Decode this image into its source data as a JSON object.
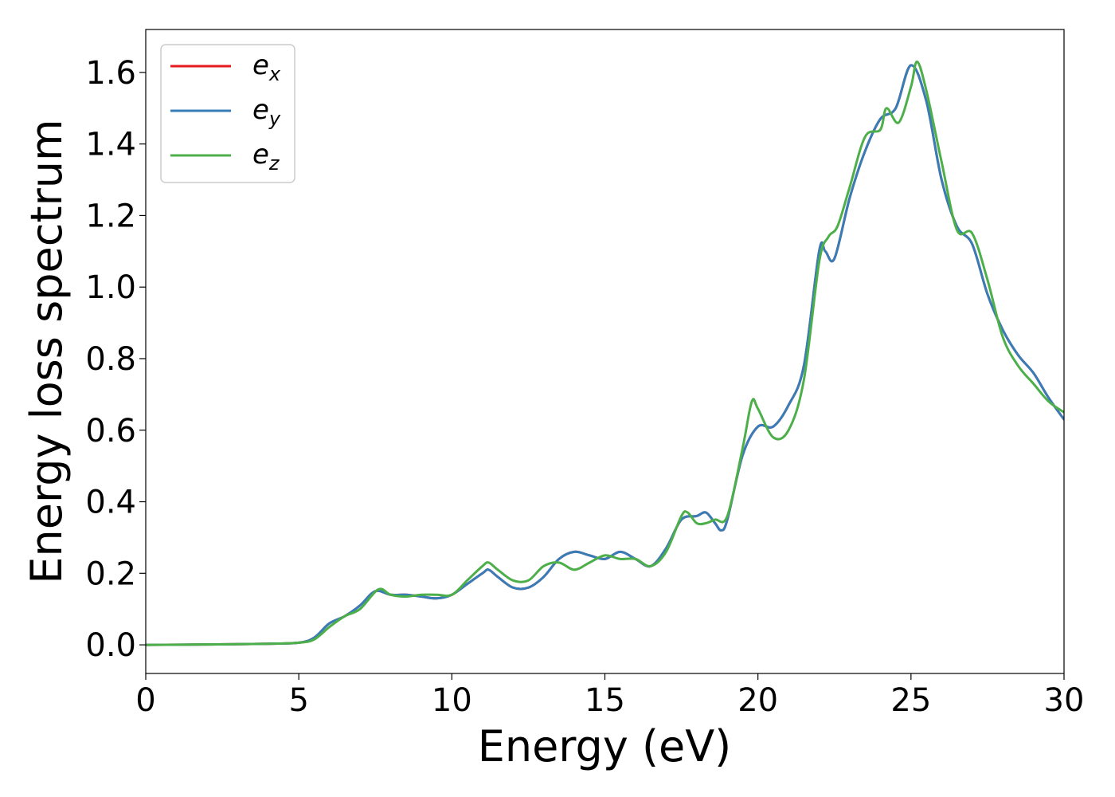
{
  "chart_data": {
    "type": "line",
    "xlabel": "Energy (eV)",
    "ylabel": "Energy loss spectrum",
    "xlim": [
      0,
      30
    ],
    "ylim": [
      -0.08,
      1.72
    ],
    "xticks": [
      0,
      5,
      10,
      15,
      20,
      25,
      30
    ],
    "xtick_labels": [
      "0",
      "5",
      "10",
      "15",
      "20",
      "25",
      "30"
    ],
    "yticks": [
      0.0,
      0.2,
      0.4,
      0.6,
      0.8,
      1.0,
      1.2,
      1.4,
      1.6
    ],
    "ytick_labels": [
      "0.0",
      "0.2",
      "0.4",
      "0.6",
      "0.8",
      "1.0",
      "1.2",
      "1.4",
      "1.6"
    ],
    "grid": false,
    "legend_position": "top-left",
    "series": [
      {
        "name": "e_x",
        "label_base": "e",
        "label_sub": "x",
        "color": "#e41a1c",
        "x": [
          0,
          2,
          4,
          5,
          5.5,
          6,
          6.5,
          7,
          7.5,
          8,
          8.5,
          9,
          9.5,
          10,
          10.5,
          11,
          11.2,
          11.5,
          12,
          12.5,
          13,
          13.5,
          14,
          14.5,
          15,
          15.5,
          16,
          16.5,
          17,
          17.5,
          18,
          18.3,
          18.6,
          18.8,
          19,
          19.5,
          20,
          20.5,
          21,
          21.5,
          22,
          22.2,
          22.5,
          23,
          23.5,
          24,
          24.5,
          25,
          25.5,
          26,
          26.5,
          27,
          27.5,
          28,
          28.5,
          29,
          29.5,
          30
        ],
        "y": [
          0.0,
          0.001,
          0.003,
          0.006,
          0.02,
          0.06,
          0.08,
          0.11,
          0.15,
          0.14,
          0.14,
          0.135,
          0.13,
          0.14,
          0.17,
          0.2,
          0.21,
          0.19,
          0.16,
          0.16,
          0.19,
          0.24,
          0.26,
          0.25,
          0.24,
          0.26,
          0.24,
          0.22,
          0.27,
          0.35,
          0.36,
          0.37,
          0.34,
          0.32,
          0.35,
          0.53,
          0.61,
          0.61,
          0.67,
          0.78,
          1.1,
          1.1,
          1.08,
          1.25,
          1.38,
          1.47,
          1.5,
          1.62,
          1.52,
          1.3,
          1.17,
          1.12,
          0.98,
          0.88,
          0.81,
          0.76,
          0.69,
          0.63
        ]
      },
      {
        "name": "e_y",
        "label_base": "e",
        "label_sub": "y",
        "color": "#377eb8",
        "x": [
          0,
          2,
          4,
          5,
          5.5,
          6,
          6.5,
          7,
          7.5,
          8,
          8.5,
          9,
          9.5,
          10,
          10.5,
          11,
          11.2,
          11.5,
          12,
          12.5,
          13,
          13.5,
          14,
          14.5,
          15,
          15.5,
          16,
          16.5,
          17,
          17.5,
          18,
          18.3,
          18.6,
          18.8,
          19,
          19.5,
          20,
          20.5,
          21,
          21.5,
          22,
          22.2,
          22.5,
          23,
          23.5,
          24,
          24.5,
          25,
          25.5,
          26,
          26.5,
          27,
          27.5,
          28,
          28.5,
          29,
          29.5,
          30
        ],
        "y": [
          0.0,
          0.001,
          0.003,
          0.006,
          0.02,
          0.06,
          0.08,
          0.11,
          0.15,
          0.14,
          0.14,
          0.135,
          0.13,
          0.14,
          0.17,
          0.2,
          0.21,
          0.19,
          0.16,
          0.16,
          0.19,
          0.24,
          0.26,
          0.25,
          0.24,
          0.26,
          0.24,
          0.22,
          0.27,
          0.35,
          0.36,
          0.37,
          0.34,
          0.32,
          0.35,
          0.53,
          0.61,
          0.61,
          0.67,
          0.78,
          1.1,
          1.1,
          1.08,
          1.25,
          1.38,
          1.47,
          1.5,
          1.62,
          1.52,
          1.3,
          1.17,
          1.12,
          0.98,
          0.88,
          0.81,
          0.76,
          0.69,
          0.63
        ]
      },
      {
        "name": "e_z",
        "label_base": "e",
        "label_sub": "z",
        "color": "#4daf4a",
        "x": [
          0,
          2,
          4,
          5,
          5.5,
          6,
          6.5,
          7,
          7.6,
          8,
          8.5,
          9,
          9.5,
          10,
          10.5,
          11,
          11.2,
          11.5,
          12,
          12.5,
          13,
          13.5,
          14,
          14.5,
          15,
          15.5,
          16,
          16.5,
          17,
          17.5,
          17.7,
          18,
          18.3,
          18.6,
          19,
          19.5,
          19.8,
          20,
          20.5,
          21,
          21.5,
          22,
          22.3,
          22.6,
          23,
          23.5,
          24,
          24.2,
          24.6,
          25,
          25.2,
          25.5,
          26,
          26.5,
          27,
          27.5,
          28,
          28.5,
          29,
          29.5,
          30
        ],
        "y": [
          0.0,
          0.001,
          0.003,
          0.006,
          0.015,
          0.05,
          0.08,
          0.1,
          0.155,
          0.14,
          0.135,
          0.14,
          0.14,
          0.14,
          0.18,
          0.22,
          0.23,
          0.21,
          0.18,
          0.18,
          0.22,
          0.23,
          0.21,
          0.23,
          0.25,
          0.24,
          0.24,
          0.22,
          0.26,
          0.36,
          0.37,
          0.34,
          0.34,
          0.35,
          0.36,
          0.55,
          0.68,
          0.66,
          0.58,
          0.6,
          0.74,
          1.07,
          1.14,
          1.17,
          1.28,
          1.42,
          1.44,
          1.5,
          1.46,
          1.56,
          1.63,
          1.55,
          1.35,
          1.16,
          1.15,
          1.02,
          0.86,
          0.78,
          0.73,
          0.68,
          0.65
        ]
      }
    ]
  }
}
